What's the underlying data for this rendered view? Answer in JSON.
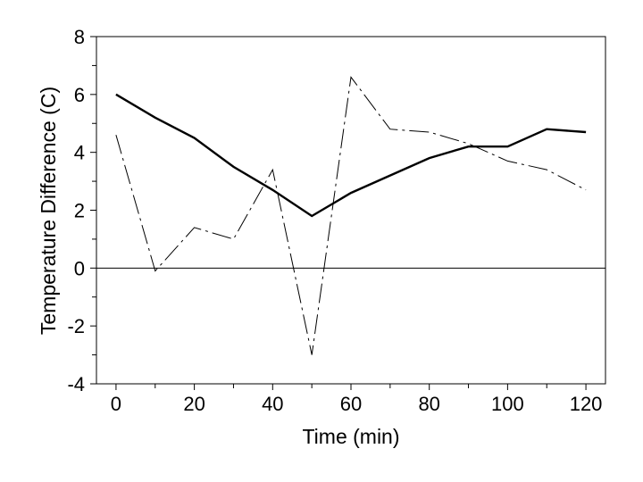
{
  "chart_data": {
    "type": "line",
    "title": "",
    "xlabel": "Time (min)",
    "ylabel": "Temperature Difference (C)",
    "xlim": [
      -5,
      125
    ],
    "ylim": [
      -4,
      8
    ],
    "xticks": [
      0,
      20,
      40,
      60,
      80,
      100,
      120
    ],
    "xtick_labels": [
      "0",
      "20",
      "40",
      "60",
      "80",
      "100",
      "120"
    ],
    "xminor": [
      10,
      30,
      50,
      70,
      90,
      110
    ],
    "yticks": [
      -4,
      -2,
      0,
      2,
      4,
      6,
      8
    ],
    "ytick_labels": [
      "-4",
      "-2",
      "0",
      "2",
      "4",
      "6",
      "8"
    ],
    "yminor": [
      -3,
      -1,
      1,
      3,
      5,
      7
    ],
    "grid": false,
    "legend": "none",
    "reference_line_y": 0,
    "series": [
      {
        "style": "solid-thick",
        "color": "#000000",
        "x": [
          0,
          10,
          20,
          30,
          40,
          50,
          60,
          70,
          80,
          90,
          100,
          110,
          120
        ],
        "y": [
          6.0,
          5.2,
          4.5,
          3.5,
          2.7,
          1.8,
          2.6,
          3.2,
          3.8,
          4.2,
          4.2,
          4.8,
          4.7
        ]
      },
      {
        "style": "dash-dot",
        "color": "#000000",
        "x": [
          0,
          10,
          20,
          30,
          40,
          50,
          60,
          70,
          80,
          90,
          100,
          110,
          120
        ],
        "y": [
          4.6,
          -0.1,
          1.4,
          1.0,
          3.4,
          -3.0,
          6.6,
          4.8,
          4.7,
          4.3,
          3.7,
          3.4,
          2.7
        ]
      }
    ]
  }
}
